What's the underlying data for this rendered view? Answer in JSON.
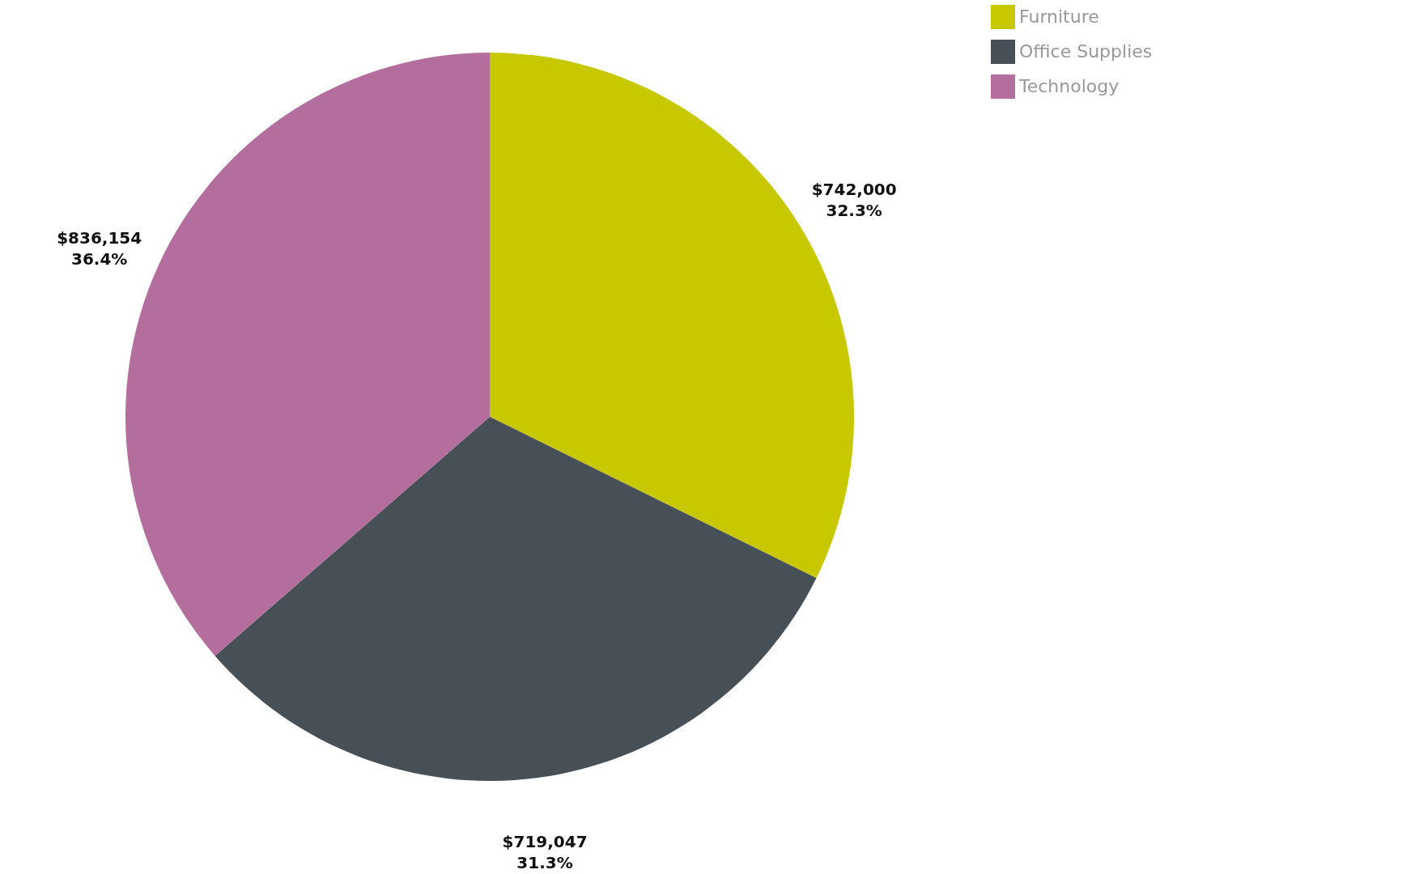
{
  "chart_data": {
    "type": "pie",
    "categories": [
      "Furniture",
      "Office Supplies",
      "Technology"
    ],
    "values": [
      742000,
      719047,
      836154
    ],
    "colors": [
      "#c8c800",
      "#474f57",
      "#b46e9e"
    ],
    "value_labels": [
      "$742,000\n32.3%",
      "$719,047\n31.3%",
      "$836,154\n36.4%"
    ],
    "legend": "right"
  }
}
